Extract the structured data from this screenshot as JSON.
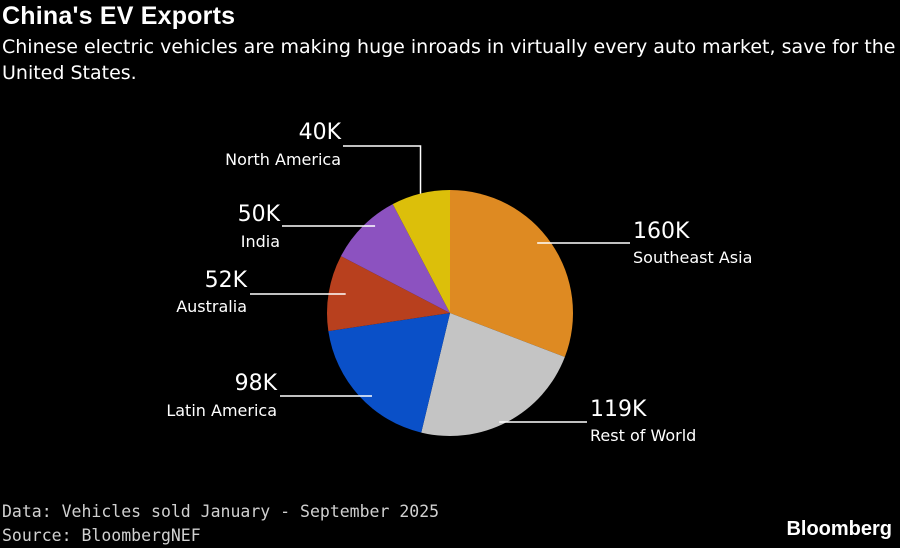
{
  "title": "China's EV Exports",
  "subtitle": "Chinese electric vehicles are making huge inroads in virtually every auto market, save for the United States.",
  "footer": {
    "data_note": "Data: Vehicles sold January - September 2025",
    "source": "Source: BloombergNEF"
  },
  "brand": "Bloomberg",
  "chart_data": {
    "type": "pie",
    "title": "China's EV Exports",
    "subtitle": "Chinese electric vehicles are making huge inroads in virtually every auto market, save for the United States.",
    "unit": "vehicles",
    "slices": [
      {
        "label": "Southeast Asia",
        "value": 160000,
        "display": "160K",
        "color": "#DE8A22"
      },
      {
        "label": "Rest of World",
        "value": 119000,
        "display": "119K",
        "color": "#C4C4C4"
      },
      {
        "label": "Latin America",
        "value": 98000,
        "display": "98K",
        "color": "#0A50C8"
      },
      {
        "label": "Australia",
        "value": 52000,
        "display": "52K",
        "color": "#B8401E"
      },
      {
        "label": "India",
        "value": 50000,
        "display": "50K",
        "color": "#8C52C0"
      },
      {
        "label": "North America",
        "value": 40000,
        "display": "40K",
        "color": "#DCBF0A"
      }
    ]
  }
}
